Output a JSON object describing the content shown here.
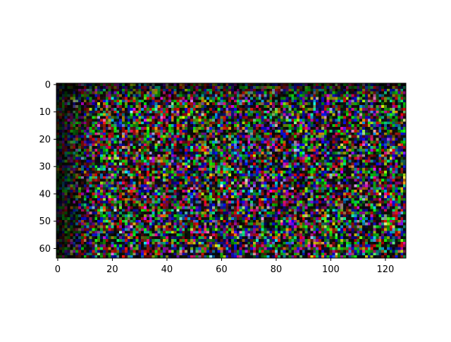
{
  "chart_data": {
    "type": "heatmap",
    "title": "",
    "xlabel": "",
    "ylabel": "",
    "width_cells": 128,
    "height_cells": 64,
    "xlim": [
      -0.5,
      127.5
    ],
    "ylim": [
      63.5,
      -0.5
    ],
    "y_inverted": true,
    "x_ticks": [
      0,
      20,
      40,
      60,
      80,
      100,
      120
    ],
    "y_ticks": [
      0,
      10,
      20,
      30,
      40,
      50,
      60
    ],
    "x_tick_labels": [
      "0",
      "20",
      "40",
      "60",
      "80",
      "100",
      "120"
    ],
    "y_tick_labels": [
      "0",
      "10",
      "20",
      "30",
      "40",
      "50",
      "60"
    ],
    "colormap": "rgb-noise",
    "pixel_distribution": "pseudo-random RGB noise, dark overall, darker toward the left columns and top rows",
    "background_color": "#000000",
    "grid": false,
    "legend": "none"
  }
}
